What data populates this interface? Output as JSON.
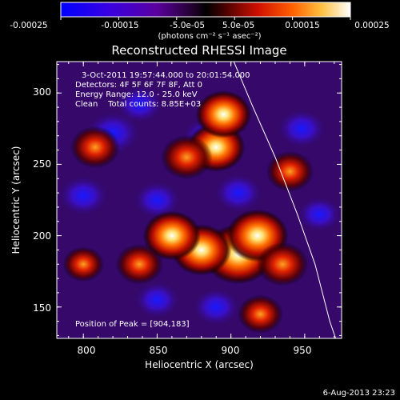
{
  "colorbar": {
    "tick_labels": [
      "-0.00025",
      "-0.00015",
      "-5.0e-05",
      "5.0e-05",
      "0.00015",
      "0.00025"
    ],
    "units_label": "(photons cm⁻² s⁻¹ asec⁻²)",
    "range": [
      -0.00025,
      0.00025
    ]
  },
  "chart_data": {
    "type": "heatmap",
    "title": "Reconstructed RHESSI Image",
    "xlabel": "Heliocentric X (arcsec)",
    "ylabel": "Heliocentric Y (arcsec)",
    "x_ticks": [
      "800",
      "850",
      "900",
      "950"
    ],
    "y_ticks": [
      "150",
      "200",
      "250",
      "300"
    ],
    "xlim": [
      782,
      975
    ],
    "ylim": [
      128,
      322
    ],
    "grid": false,
    "colormap": [
      "#0000ff",
      "#5000c8",
      "#2a0040",
      "#000000",
      "#800000",
      "#ff2000",
      "#ff9000",
      "#ffffb0",
      "#ffffff"
    ],
    "hot_spots": [
      {
        "x": 905,
        "y": 187,
        "intensity": 1.0
      },
      {
        "x": 880,
        "y": 190,
        "intensity": 0.75
      },
      {
        "x": 860,
        "y": 200,
        "intensity": 0.7
      },
      {
        "x": 918,
        "y": 200,
        "intensity": 0.8
      },
      {
        "x": 935,
        "y": 180,
        "intensity": 0.55
      },
      {
        "x": 890,
        "y": 262,
        "intensity": 0.7
      },
      {
        "x": 895,
        "y": 285,
        "intensity": 0.65
      },
      {
        "x": 870,
        "y": 255,
        "intensity": 0.55
      },
      {
        "x": 808,
        "y": 262,
        "intensity": 0.5
      },
      {
        "x": 940,
        "y": 245,
        "intensity": 0.45
      },
      {
        "x": 838,
        "y": 180,
        "intensity": 0.45
      },
      {
        "x": 800,
        "y": 180,
        "intensity": 0.3
      },
      {
        "x": 920,
        "y": 145,
        "intensity": 0.4
      }
    ],
    "cold_spots": [
      {
        "x": 820,
        "y": 272,
        "intensity": 0.7
      },
      {
        "x": 883,
        "y": 270,
        "intensity": 0.4
      },
      {
        "x": 838,
        "y": 292,
        "intensity": 0.45
      },
      {
        "x": 800,
        "y": 228,
        "intensity": 0.55
      },
      {
        "x": 850,
        "y": 225,
        "intensity": 0.45
      },
      {
        "x": 905,
        "y": 230,
        "intensity": 0.5
      },
      {
        "x": 948,
        "y": 275,
        "intensity": 0.5
      },
      {
        "x": 960,
        "y": 215,
        "intensity": 0.35
      },
      {
        "x": 890,
        "y": 150,
        "intensity": 0.45
      },
      {
        "x": 850,
        "y": 155,
        "intensity": 0.4
      }
    ],
    "limb_curve": [
      [
        902,
        322
      ],
      [
        915,
        290
      ],
      [
        930,
        255
      ],
      [
        945,
        215
      ],
      [
        957,
        180
      ],
      [
        967,
        140
      ],
      [
        971,
        128
      ]
    ]
  },
  "annotations": {
    "time_range": "3-Oct-2011 19:57:44.000 to 20:01:54.000",
    "detectors": "Detectors: 4F 5F 6F 7F 8F, Att 0",
    "energy_range": "Energy Range: 12.0 - 25.0 keV",
    "clean_counts": "Clean    Total counts: 8.85E+03",
    "peak_position": "Position of Peak = [904,183]"
  },
  "footer": {
    "date_stamp": "6-Aug-2013 23:23"
  }
}
